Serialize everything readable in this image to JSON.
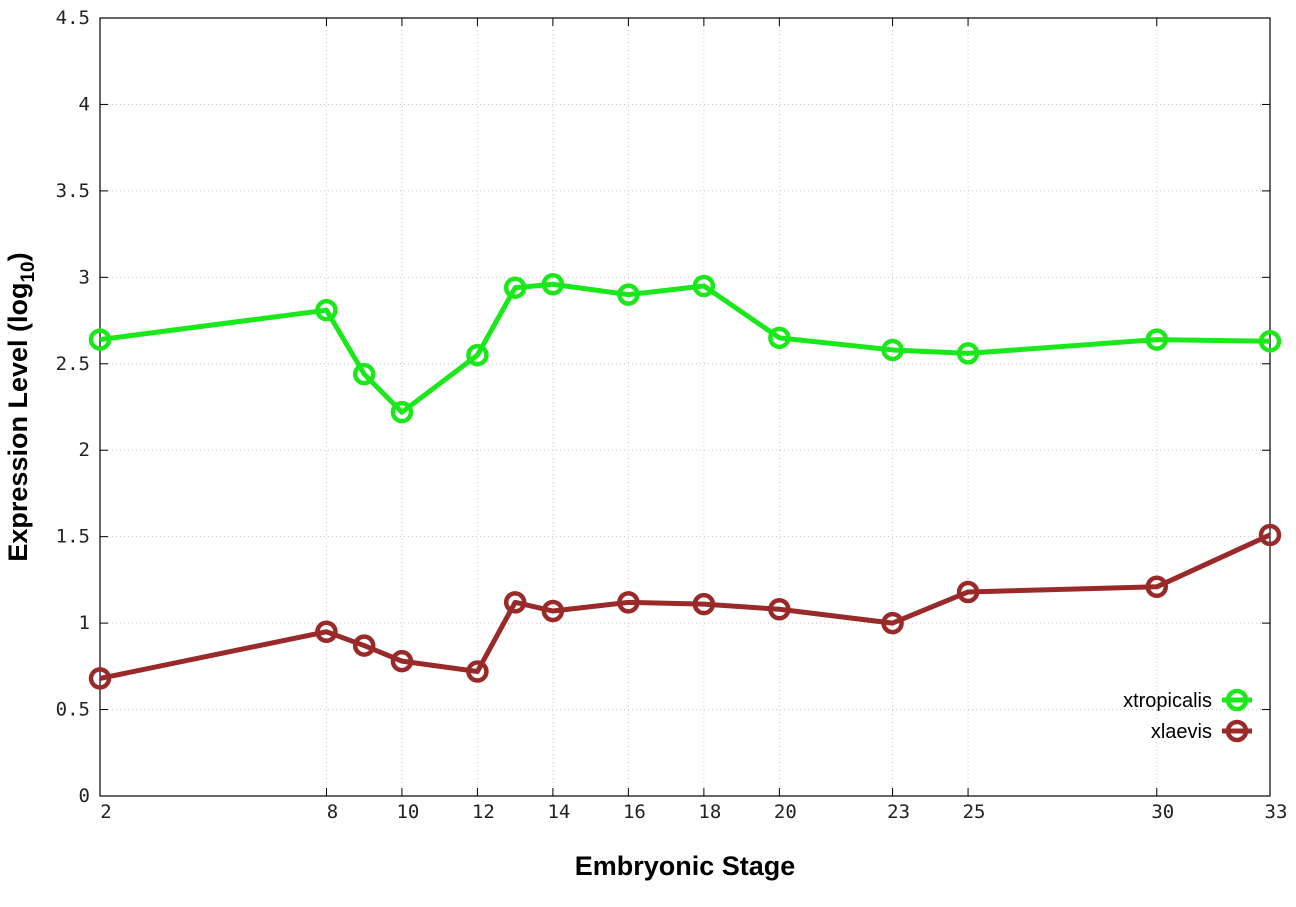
{
  "chart_data": {
    "type": "line",
    "xlabel": "Embryonic Stage",
    "ylabel": "Expression Level (log",
    "ylabel_sub": "10",
    "ylabel_suffix": ")",
    "xlim": [
      2,
      33
    ],
    "ylim": [
      0,
      4.5
    ],
    "x_ticks": [
      2,
      8,
      10,
      12,
      14,
      16,
      18,
      20,
      23,
      25,
      30,
      33
    ],
    "y_ticks": [
      0,
      0.5,
      1,
      1.5,
      2,
      2.5,
      3,
      3.5,
      4,
      4.5
    ],
    "y_tick_labels": [
      "0",
      "0.5",
      "1",
      "1.5",
      "2",
      "2.5",
      "3",
      "3.5",
      "4",
      "4.5"
    ],
    "grid": true,
    "legend_position": "bottom-right",
    "x": [
      2,
      8,
      9,
      10,
      12,
      13,
      14,
      16,
      18,
      20,
      23,
      25,
      30,
      33
    ],
    "series": [
      {
        "name": "xtropicalis",
        "color": "#1be81b",
        "values": [
          2.64,
          2.81,
          2.44,
          2.22,
          2.55,
          2.94,
          2.96,
          2.9,
          2.95,
          2.65,
          2.58,
          2.56,
          2.64,
          2.63
        ]
      },
      {
        "name": "xlaevis",
        "color": "#9a2a2a",
        "values": [
          0.68,
          0.95,
          0.87,
          0.78,
          0.72,
          1.12,
          1.07,
          1.12,
          1.11,
          1.08,
          1.0,
          1.18,
          1.21,
          1.51
        ]
      }
    ]
  }
}
